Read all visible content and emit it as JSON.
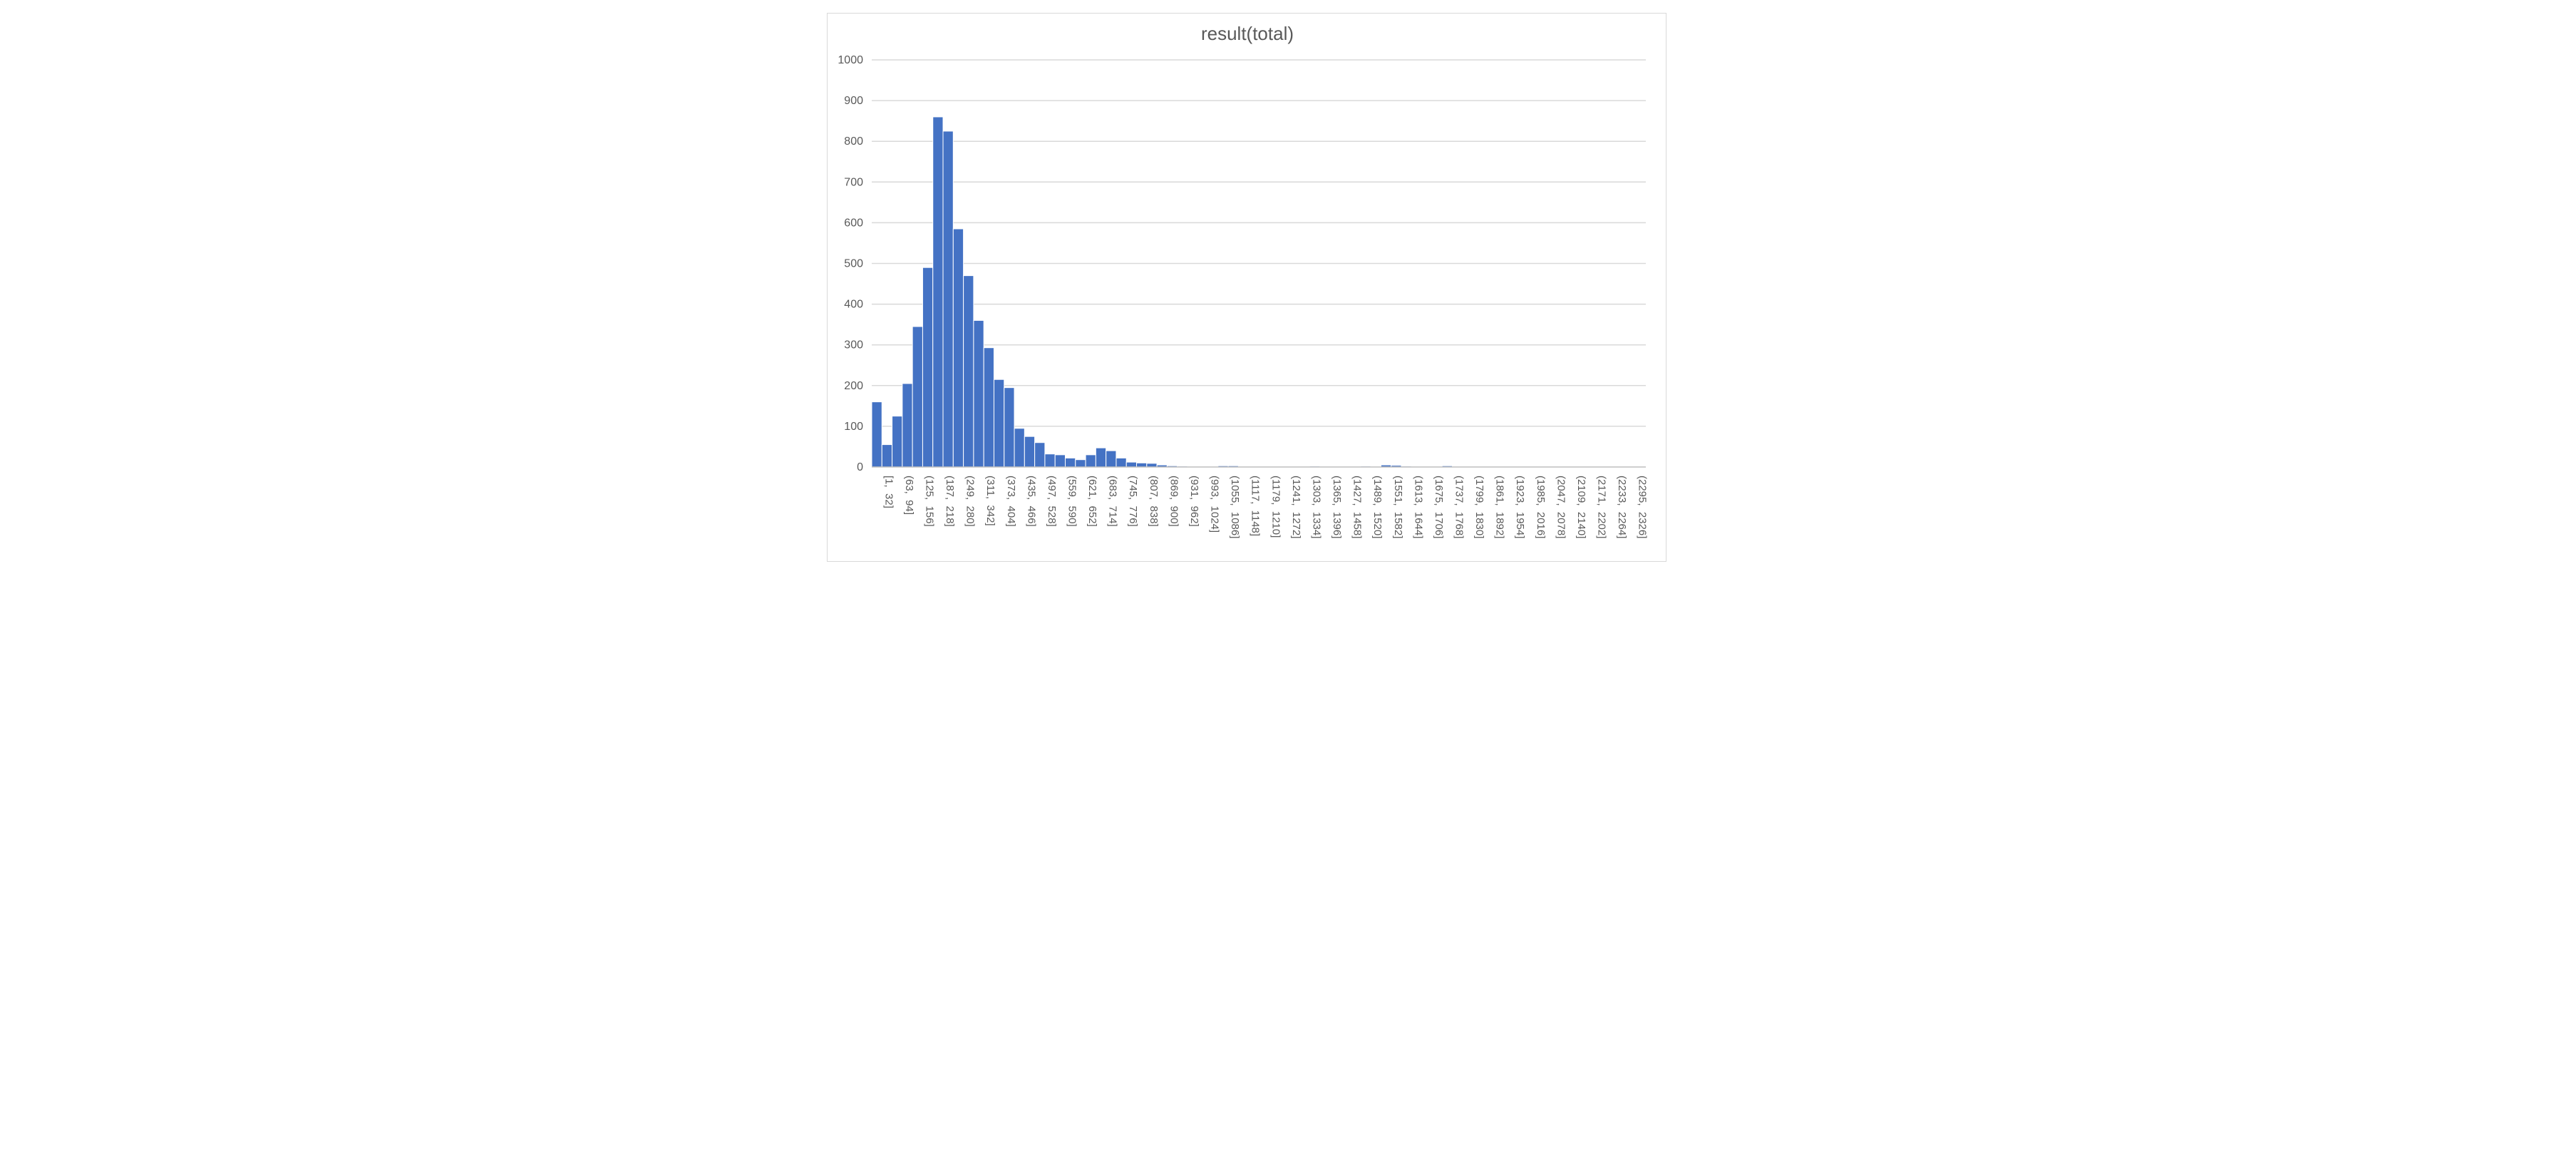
{
  "chart_data": {
    "type": "bar",
    "title": "result(total)",
    "xlabel": "",
    "ylabel": "",
    "ylim": [
      0,
      1000
    ],
    "yticks": [
      "0",
      "100",
      "200",
      "300",
      "400",
      "500",
      "600",
      "700",
      "800",
      "900",
      "1000"
    ],
    "grid": true,
    "legend": "none",
    "bar_color": "#4472C4",
    "bar_edge_color": "#ffffff",
    "tick_labels": [
      "[1,  32]",
      "(63,  94]",
      "(125,  156]",
      "(187,  218]",
      "(249,  280]",
      "(311,  342]",
      "(373,  404]",
      "(435,  466]",
      "(497,  528]",
      "(559,  590]",
      "(621,  652]",
      "(683,  714]",
      "(745,  776]",
      "(807,  838]",
      "(869,  900]",
      "(931,  962]",
      "(993,  1024]",
      "(1055,  1086]",
      "(1117,  1148]",
      "(1179,  1210]",
      "(1241,  1272]",
      "(1303,  1334]",
      "(1365,  1396]",
      "(1427,  1458]",
      "(1489,  1520]",
      "(1551,  1582]",
      "(1613,  1644]",
      "(1675,  1706]",
      "(1737,  1768]",
      "(1799,  1830]",
      "(1861,  1892]",
      "(1923,  1954]",
      "(1985,  2016]",
      "(2047,  2078]",
      "(2109,  2140]",
      "(2171,  2202]",
      "(2233,  2264]",
      "(2295,  2326]"
    ],
    "values": [
      160,
      55,
      125,
      205,
      345,
      490,
      860,
      825,
      585,
      470,
      360,
      293,
      215,
      195,
      95,
      75,
      60,
      32,
      30,
      22,
      18,
      30,
      47,
      40,
      22,
      12,
      10,
      9,
      5,
      3,
      2,
      1,
      0,
      0,
      3,
      3,
      1,
      1,
      0,
      0,
      0,
      1,
      1,
      2,
      0,
      0,
      0,
      0,
      2,
      0,
      5,
      4,
      2,
      1,
      0,
      0,
      3,
      0,
      0,
      0,
      0,
      0,
      0,
      0,
      0,
      0,
      0,
      0,
      0,
      0,
      0,
      0,
      0,
      0,
      0,
      0
    ]
  }
}
